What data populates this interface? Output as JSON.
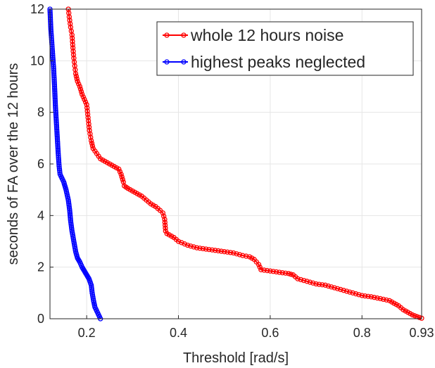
{
  "chart_data": {
    "type": "line",
    "xlabel": "Threshold [rad/s]",
    "ylabel": "seconds of FA over the 12 hours",
    "xlim": [
      0.12,
      0.93
    ],
    "ylim": [
      0,
      12
    ],
    "xticks": [
      0.2,
      0.4,
      0.6,
      0.8,
      0.93
    ],
    "xtick_labels": [
      "0.2",
      "0.4",
      "0.6",
      "0.8",
      "0.93"
    ],
    "yticks": [
      0,
      2,
      4,
      6,
      8,
      10,
      12
    ],
    "ytick_labels": [
      "0",
      "2",
      "4",
      "6",
      "8",
      "10",
      "12"
    ],
    "grid": true,
    "legend_position": "top-right",
    "series": [
      {
        "name": "whole 12 hours noise",
        "color": "#ff0000",
        "marker": "circle",
        "x": [
          0.16,
          0.162,
          0.165,
          0.168,
          0.17,
          0.172,
          0.174,
          0.176,
          0.18,
          0.185,
          0.19,
          0.195,
          0.2,
          0.203,
          0.206,
          0.21,
          0.214,
          0.218,
          0.222,
          0.226,
          0.23,
          0.235,
          0.24,
          0.25,
          0.26,
          0.27,
          0.275,
          0.28,
          0.282,
          0.286,
          0.29,
          0.3,
          0.31,
          0.32,
          0.33,
          0.34,
          0.35,
          0.36,
          0.366,
          0.37,
          0.372,
          0.375,
          0.38,
          0.39,
          0.4,
          0.42,
          0.44,
          0.46,
          0.48,
          0.5,
          0.52,
          0.54,
          0.555,
          0.565,
          0.57,
          0.575,
          0.58,
          0.6,
          0.62,
          0.64,
          0.65,
          0.66,
          0.68,
          0.7,
          0.72,
          0.74,
          0.76,
          0.78,
          0.8,
          0.82,
          0.84,
          0.86,
          0.87,
          0.88,
          0.89,
          0.9,
          0.91,
          0.92,
          0.93
        ],
        "y": [
          12.0,
          11.7,
          11.3,
          11.0,
          10.5,
          10.1,
          9.8,
          9.5,
          9.2,
          9.0,
          8.7,
          8.5,
          8.3,
          7.8,
          7.3,
          6.9,
          6.6,
          6.5,
          6.4,
          6.3,
          6.2,
          6.15,
          6.1,
          6.0,
          5.9,
          5.8,
          5.6,
          5.3,
          5.15,
          5.1,
          5.05,
          4.95,
          4.85,
          4.75,
          4.6,
          4.45,
          4.35,
          4.2,
          4.1,
          3.85,
          3.4,
          3.3,
          3.25,
          3.15,
          3.0,
          2.85,
          2.75,
          2.7,
          2.65,
          2.6,
          2.55,
          2.45,
          2.4,
          2.3,
          2.2,
          2.1,
          1.9,
          1.85,
          1.8,
          1.75,
          1.7,
          1.55,
          1.45,
          1.35,
          1.3,
          1.2,
          1.1,
          1.0,
          0.9,
          0.85,
          0.78,
          0.7,
          0.6,
          0.5,
          0.35,
          0.25,
          0.15,
          0.08,
          0.02
        ]
      },
      {
        "name": "highest peaks neglected",
        "color": "#0000ff",
        "marker": "circle",
        "x": [
          0.12,
          0.121,
          0.122,
          0.124,
          0.126,
          0.128,
          0.13,
          0.131,
          0.132,
          0.134,
          0.136,
          0.138,
          0.14,
          0.142,
          0.146,
          0.15,
          0.155,
          0.16,
          0.163,
          0.165,
          0.168,
          0.172,
          0.176,
          0.18,
          0.185,
          0.19,
          0.195,
          0.2,
          0.205,
          0.21,
          0.212,
          0.215,
          0.218,
          0.222,
          0.226,
          0.23
        ],
        "y": [
          12.0,
          11.6,
          11.2,
          10.7,
          10.2,
          9.7,
          9.0,
          8.6,
          8.2,
          7.6,
          7.0,
          6.4,
          5.9,
          5.6,
          5.45,
          5.3,
          5.0,
          4.6,
          4.2,
          3.8,
          3.4,
          3.0,
          2.6,
          2.35,
          2.2,
          2.0,
          1.85,
          1.7,
          1.55,
          1.3,
          1.0,
          0.7,
          0.45,
          0.3,
          0.15,
          0.0
        ]
      }
    ]
  }
}
